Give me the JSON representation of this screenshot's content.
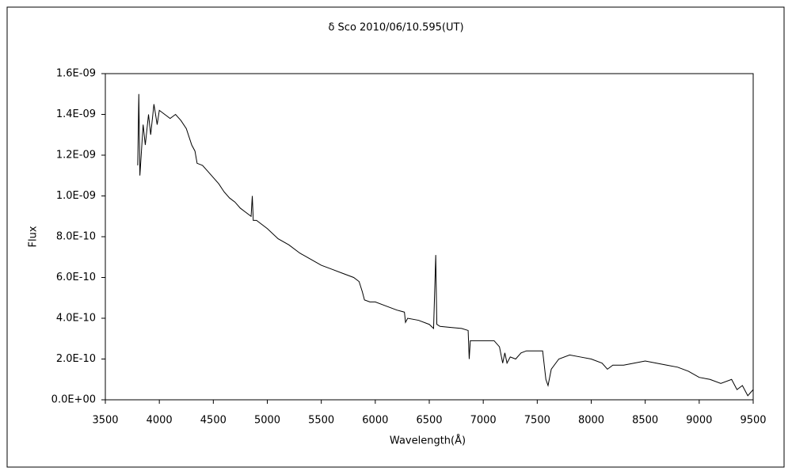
{
  "chart_data": {
    "type": "line",
    "title": "δ Sco   2010/06/10.595(UT)",
    "x_label": "Wavelength(Å)",
    "y_label": "Flux",
    "color": "#000000",
    "xlim": [
      3500,
      9500
    ],
    "xticks": [
      3500,
      4000,
      4500,
      5000,
      5500,
      6000,
      6500,
      7000,
      7500,
      8000,
      8500,
      9000,
      9500
    ],
    "ylim": [
      0,
      1.6e-09
    ],
    "yticks": [
      {
        "value": 0,
        "label": "0.0E+00"
      },
      {
        "value": 2e-10,
        "label": "2.0E-10"
      },
      {
        "value": 4e-10,
        "label": "4.0E-10"
      },
      {
        "value": 6e-10,
        "label": "6.0E-10"
      },
      {
        "value": 8e-10,
        "label": "8.0E-10"
      },
      {
        "value": 1e-09,
        "label": "1.0E-09"
      },
      {
        "value": 1.2e-09,
        "label": "1.2E-09"
      },
      {
        "value": 1.4e-09,
        "label": "1.4E-09"
      },
      {
        "value": 1.6e-09,
        "label": "1.6E-09"
      }
    ],
    "grid": false,
    "x": [
      3800,
      3810,
      3820,
      3850,
      3870,
      3900,
      3920,
      3950,
      3980,
      4000,
      4050,
      4100,
      4150,
      4200,
      4250,
      4300,
      4330,
      4350,
      4400,
      4450,
      4500,
      4550,
      4600,
      4650,
      4700,
      4750,
      4800,
      4850,
      4861,
      4870,
      4900,
      5000,
      5100,
      5200,
      5300,
      5400,
      5500,
      5600,
      5700,
      5800,
      5850,
      5880,
      5900,
      5950,
      6000,
      6100,
      6200,
      6270,
      6280,
      6300,
      6400,
      6500,
      6540,
      6560,
      6570,
      6600,
      6700,
      6800,
      6860,
      6870,
      6880,
      6900,
      7000,
      7100,
      7150,
      7180,
      7200,
      7220,
      7250,
      7300,
      7350,
      7400,
      7500,
      7550,
      7580,
      7600,
      7630,
      7700,
      7800,
      7900,
      8000,
      8100,
      8150,
      8200,
      8300,
      8400,
      8500,
      8600,
      8700,
      8800,
      8900,
      9000,
      9100,
      9200,
      9300,
      9350,
      9400,
      9450,
      9500
    ],
    "values": [
      1.15e-09,
      1.5e-09,
      1.1e-09,
      1.35e-09,
      1.25e-09,
      1.4e-09,
      1.3e-09,
      1.45e-09,
      1.35e-09,
      1.42e-09,
      1.4e-09,
      1.38e-09,
      1.4e-09,
      1.37e-09,
      1.33e-09,
      1.25e-09,
      1.22e-09,
      1.16e-09,
      1.15e-09,
      1.12e-09,
      1.09e-09,
      1.06e-09,
      1.02e-09,
      9.9e-10,
      9.7e-10,
      9.4e-10,
      9.2e-10,
      9e-10,
      1e-09,
      8.8e-10,
      8.8e-10,
      8.4e-10,
      7.9e-10,
      7.6e-10,
      7.2e-10,
      6.9e-10,
      6.6e-10,
      6.4e-10,
      6.2e-10,
      6e-10,
      5.8e-10,
      5.3e-10,
      4.9e-10,
      4.8e-10,
      4.8e-10,
      4.6e-10,
      4.4e-10,
      4.3e-10,
      3.8e-10,
      4e-10,
      3.9e-10,
      3.7e-10,
      3.5e-10,
      7.1e-10,
      3.7e-10,
      3.6e-10,
      3.55e-10,
      3.5e-10,
      3.4e-10,
      2e-10,
      2.9e-10,
      2.9e-10,
      2.9e-10,
      2.9e-10,
      2.6e-10,
      1.8e-10,
      2.3e-10,
      1.8e-10,
      2.1e-10,
      2e-10,
      2.3e-10,
      2.4e-10,
      2.4e-10,
      2.4e-10,
      1e-10,
      7e-11,
      1.5e-10,
      2e-10,
      2.2e-10,
      2.1e-10,
      2e-10,
      1.8e-10,
      1.5e-10,
      1.7e-10,
      1.7e-10,
      1.8e-10,
      1.9e-10,
      1.8e-10,
      1.7e-10,
      1.6e-10,
      1.4e-10,
      1.1e-10,
      1e-10,
      8e-11,
      1e-10,
      5e-11,
      7e-11,
      2e-11,
      5e-11
    ]
  }
}
